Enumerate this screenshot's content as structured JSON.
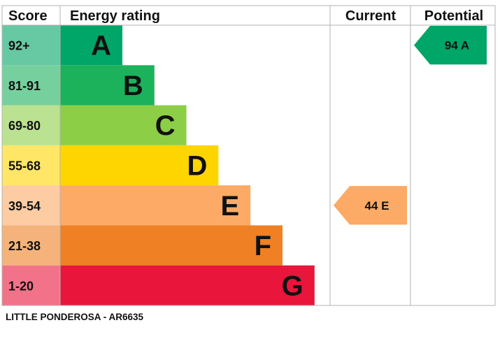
{
  "chart_data": {
    "type": "bar",
    "headers": {
      "score": "Score",
      "rating": "Energy rating",
      "current": "Current",
      "potential": "Potential"
    },
    "bands": [
      {
        "score": "92+",
        "letter": "A",
        "color": "#00a568",
        "score_bg": "#66c9a3"
      },
      {
        "score": "81-91",
        "letter": "B",
        "color": "#1bb25b",
        "score_bg": "#76d09d"
      },
      {
        "score": "69-80",
        "letter": "C",
        "color": "#8cce46",
        "score_bg": "#bae290"
      },
      {
        "score": "55-68",
        "letter": "D",
        "color": "#ffd500",
        "score_bg": "#ffe666"
      },
      {
        "score": "39-54",
        "letter": "E",
        "color": "#fcaa65",
        "score_bg": "#fdcca3"
      },
      {
        "score": "21-38",
        "letter": "F",
        "color": "#ef8023",
        "score_bg": "#f5b37b"
      },
      {
        "score": "1-20",
        "letter": "G",
        "color": "#e9153b",
        "score_bg": "#f27389"
      }
    ],
    "current": {
      "value": 44,
      "letter": "E",
      "label": "44  E"
    },
    "potential": {
      "value": 94,
      "letter": "A",
      "label": "94  A"
    }
  },
  "footer": {
    "caption": "LITTLE PONDEROSA - AR6635"
  },
  "colors": {
    "grid": "#b3b3b3",
    "text": "#111111"
  }
}
